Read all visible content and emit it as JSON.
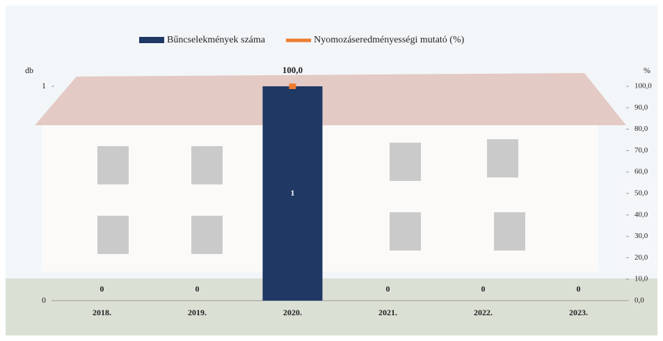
{
  "chart_data": {
    "type": "bar-line",
    "legend_position": "top",
    "ylabel": "db",
    "y2label": "%",
    "categories": [
      "2018.",
      "2019.",
      "2020.",
      "2021.",
      "2022.",
      "2023."
    ],
    "series": [
      {
        "name": "Bűncselekmények száma",
        "type": "bar",
        "color": "#1f3864",
        "values": [
          0,
          0,
          1,
          0,
          0,
          0
        ]
      },
      {
        "name": "Nyomozáseredményességi mutató (%)",
        "type": "line",
        "color": "#ed7d31",
        "axis": "y2",
        "values": [
          null,
          null,
          100,
          null,
          null,
          null
        ],
        "value_labels": [
          null,
          null,
          "100,0",
          null,
          null,
          null
        ]
      }
    ],
    "ylim": [
      0,
      1
    ],
    "yticks": [
      0,
      1
    ],
    "y2lim": [
      0,
      100
    ],
    "y2ticks": [
      {
        "value": 0,
        "label": "0,0"
      },
      {
        "value": 10,
        "label": "10,0"
      },
      {
        "value": 20,
        "label": "20,0"
      },
      {
        "value": 30,
        "label": "30,0"
      },
      {
        "value": 40,
        "label": "40,0"
      },
      {
        "value": 50,
        "label": "50,0"
      },
      {
        "value": 60,
        "label": "60,0"
      },
      {
        "value": 70,
        "label": "70,0"
      },
      {
        "value": 80,
        "label": "80,0"
      },
      {
        "value": 90,
        "label": "90,0"
      },
      {
        "value": 100,
        "label": "100,0"
      }
    ]
  }
}
